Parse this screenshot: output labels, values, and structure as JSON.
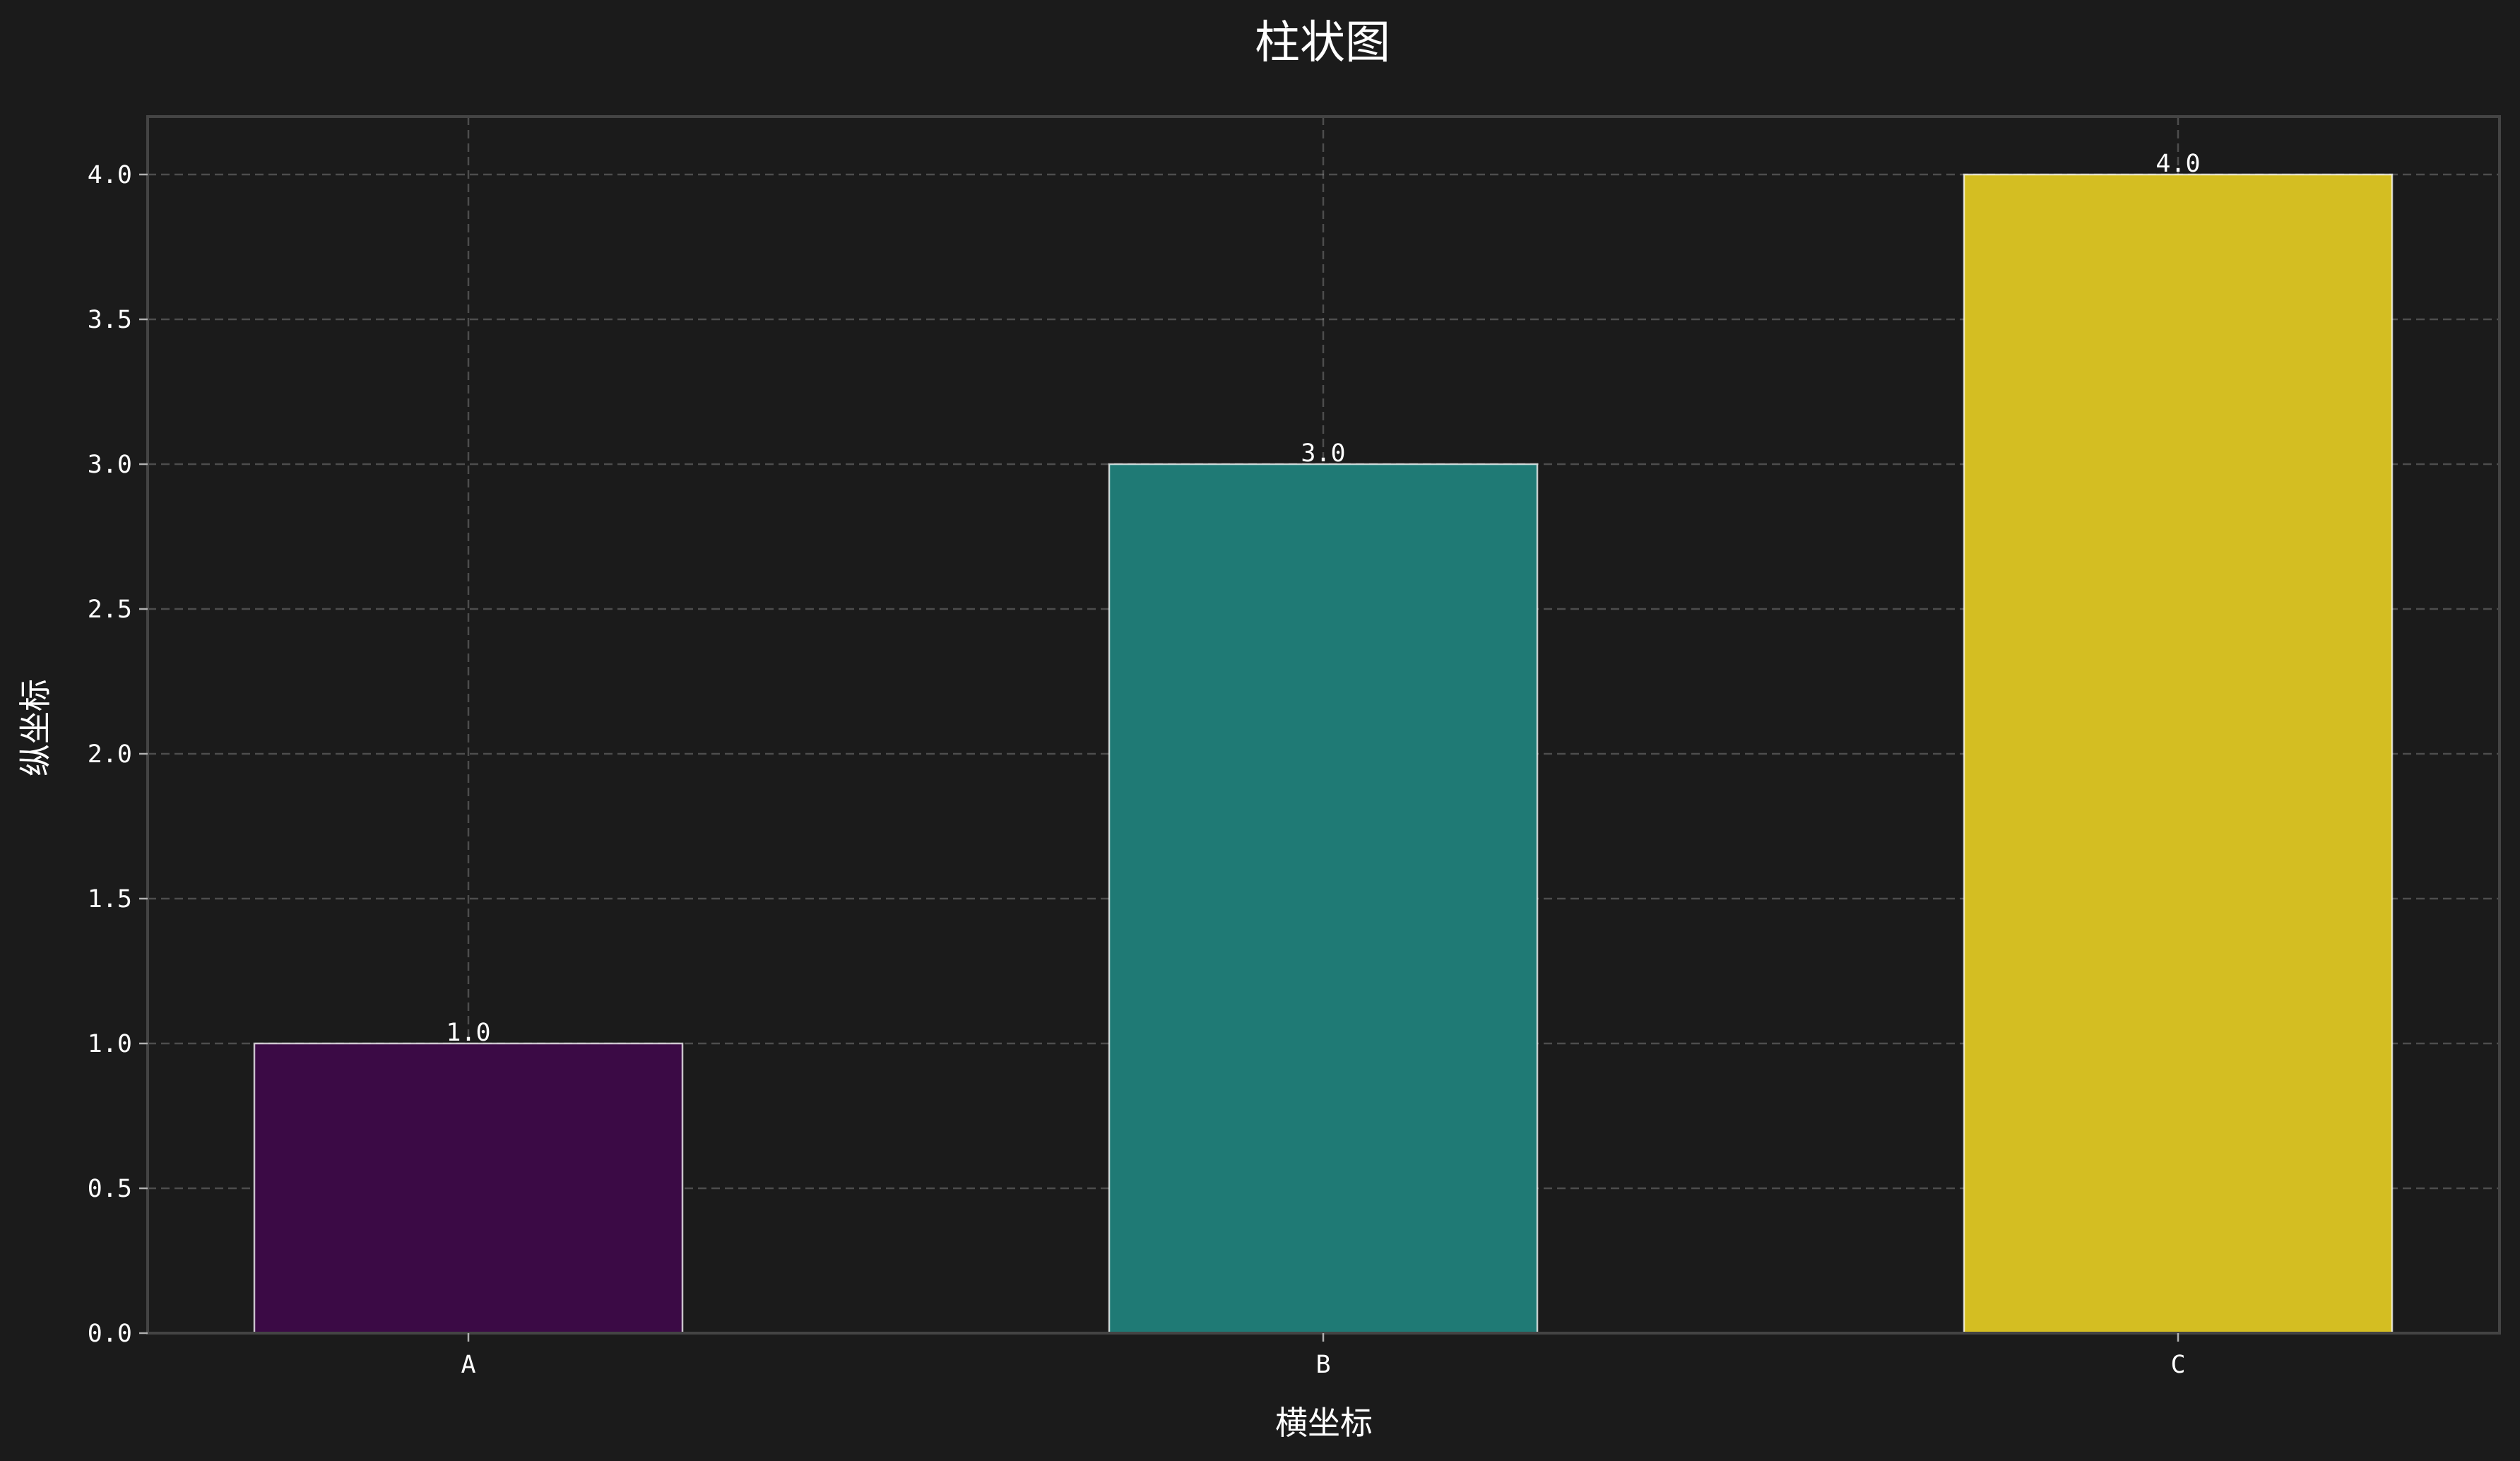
{
  "chart_data": {
    "type": "bar",
    "title": "柱状图",
    "xlabel": "横坐标",
    "ylabel": "纵坐标",
    "categories": [
      "A",
      "B",
      "C"
    ],
    "values": [
      1.0,
      3.0,
      4.0
    ],
    "value_labels": [
      "1.0",
      "3.0",
      "4.0"
    ],
    "colors": [
      "#3b0a45",
      "#1f7a75",
      "#d4be22"
    ],
    "ylim": [
      0,
      4.2
    ],
    "yticks": [
      0.0,
      0.5,
      1.0,
      1.5,
      2.0,
      2.5,
      3.0,
      3.5,
      4.0
    ],
    "ytick_labels": [
      "0.0",
      "0.5",
      "1.0",
      "1.5",
      "2.0",
      "2.5",
      "3.0",
      "3.5",
      "4.0"
    ],
    "grid": true,
    "background": "#1b1b1b"
  }
}
